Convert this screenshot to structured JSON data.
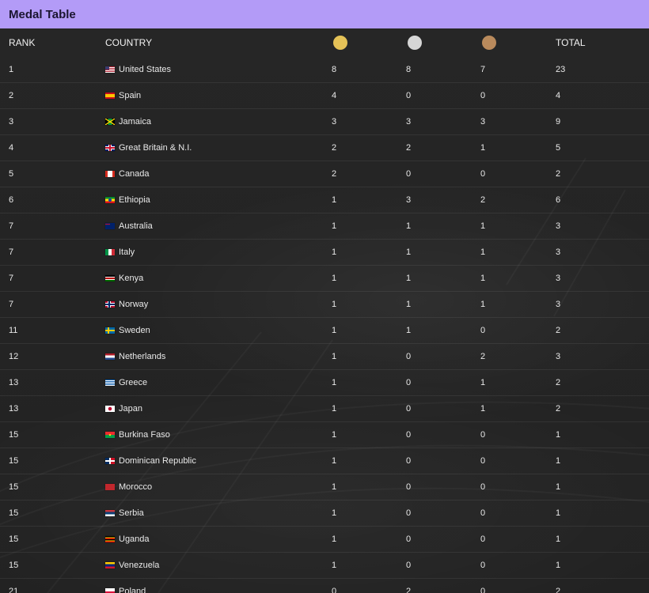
{
  "title": "Medal Table",
  "header": {
    "rank": "RANK",
    "country": "COUNTRY",
    "gold_icon": "gold-medal-icon",
    "silver_icon": "silver-medal-icon",
    "bronze_icon": "bronze-medal-icon",
    "total": "TOTAL"
  },
  "colors": {
    "title_bar": "#b39bf7",
    "gold": "#e5c257",
    "silver": "#d6d6d6",
    "bronze": "#b98a5c"
  },
  "rows": [
    {
      "rank": "1",
      "country": "United States",
      "flag": "us",
      "gold": "8",
      "silver": "8",
      "bronze": "7",
      "total": "23"
    },
    {
      "rank": "2",
      "country": "Spain",
      "flag": "es",
      "gold": "4",
      "silver": "0",
      "bronze": "0",
      "total": "4"
    },
    {
      "rank": "3",
      "country": "Jamaica",
      "flag": "jm",
      "gold": "3",
      "silver": "3",
      "bronze": "3",
      "total": "9"
    },
    {
      "rank": "4",
      "country": "Great Britain & N.I.",
      "flag": "gb",
      "gold": "2",
      "silver": "2",
      "bronze": "1",
      "total": "5"
    },
    {
      "rank": "5",
      "country": "Canada",
      "flag": "ca",
      "gold": "2",
      "silver": "0",
      "bronze": "0",
      "total": "2"
    },
    {
      "rank": "6",
      "country": "Ethiopia",
      "flag": "et",
      "gold": "1",
      "silver": "3",
      "bronze": "2",
      "total": "6"
    },
    {
      "rank": "7",
      "country": "Australia",
      "flag": "au",
      "gold": "1",
      "silver": "1",
      "bronze": "1",
      "total": "3"
    },
    {
      "rank": "7",
      "country": "Italy",
      "flag": "it",
      "gold": "1",
      "silver": "1",
      "bronze": "1",
      "total": "3"
    },
    {
      "rank": "7",
      "country": "Kenya",
      "flag": "ke",
      "gold": "1",
      "silver": "1",
      "bronze": "1",
      "total": "3"
    },
    {
      "rank": "7",
      "country": "Norway",
      "flag": "no",
      "gold": "1",
      "silver": "1",
      "bronze": "1",
      "total": "3"
    },
    {
      "rank": "11",
      "country": "Sweden",
      "flag": "se",
      "gold": "1",
      "silver": "1",
      "bronze": "0",
      "total": "2"
    },
    {
      "rank": "12",
      "country": "Netherlands",
      "flag": "nl",
      "gold": "1",
      "silver": "0",
      "bronze": "2",
      "total": "3"
    },
    {
      "rank": "13",
      "country": "Greece",
      "flag": "gr",
      "gold": "1",
      "silver": "0",
      "bronze": "1",
      "total": "2"
    },
    {
      "rank": "13",
      "country": "Japan",
      "flag": "jp",
      "gold": "1",
      "silver": "0",
      "bronze": "1",
      "total": "2"
    },
    {
      "rank": "15",
      "country": "Burkina Faso",
      "flag": "bf",
      "gold": "1",
      "silver": "0",
      "bronze": "0",
      "total": "1"
    },
    {
      "rank": "15",
      "country": "Dominican Republic",
      "flag": "do",
      "gold": "1",
      "silver": "0",
      "bronze": "0",
      "total": "1"
    },
    {
      "rank": "15",
      "country": "Morocco",
      "flag": "ma",
      "gold": "1",
      "silver": "0",
      "bronze": "0",
      "total": "1"
    },
    {
      "rank": "15",
      "country": "Serbia",
      "flag": "rs",
      "gold": "1",
      "silver": "0",
      "bronze": "0",
      "total": "1"
    },
    {
      "rank": "15",
      "country": "Uganda",
      "flag": "ug",
      "gold": "1",
      "silver": "0",
      "bronze": "0",
      "total": "1"
    },
    {
      "rank": "15",
      "country": "Venezuela",
      "flag": "ve",
      "gold": "1",
      "silver": "0",
      "bronze": "0",
      "total": "1"
    },
    {
      "rank": "21",
      "country": "Poland",
      "flag": "pl",
      "gold": "0",
      "silver": "2",
      "bronze": "0",
      "total": "2"
    }
  ]
}
